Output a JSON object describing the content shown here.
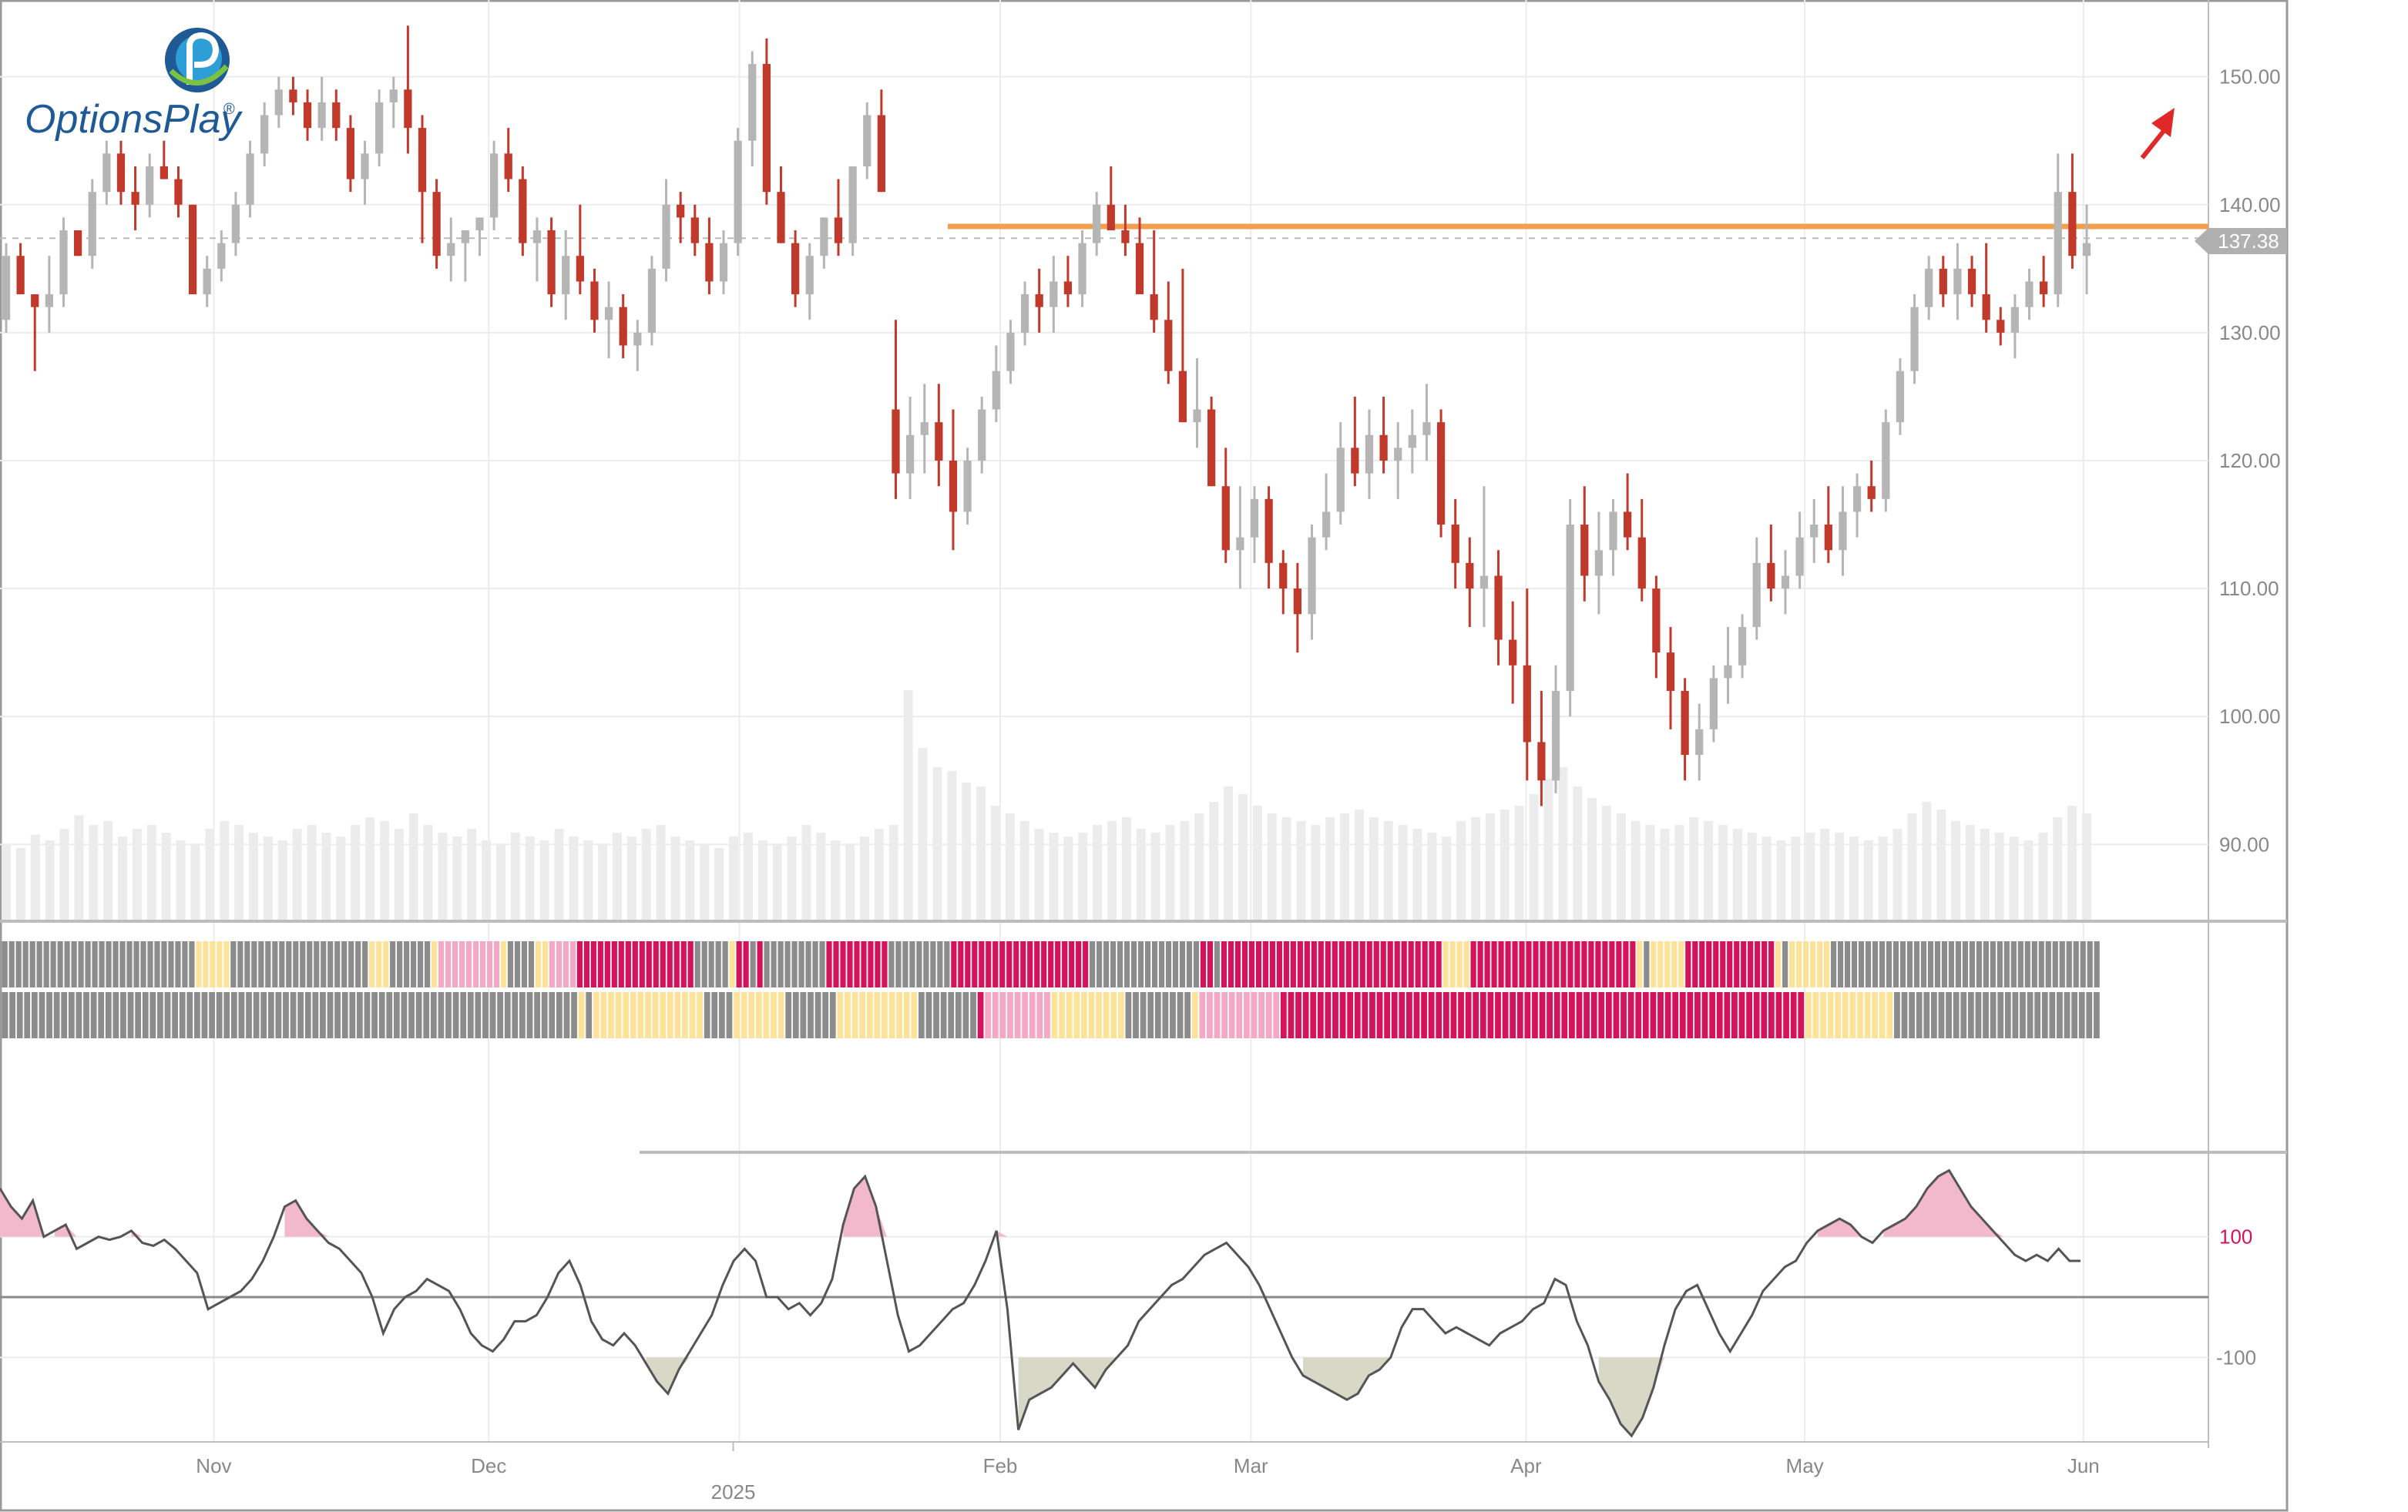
{
  "branding": {
    "logo_text": "OptionsPlay",
    "logo_mark": "®"
  },
  "colors": {
    "up_candle": "#b5b5b5",
    "down_candle": "#c0392b",
    "volume": "#ececec",
    "grid": "#ececec",
    "resistance": "#f0a050",
    "price_tag_bg": "#b0b0b0",
    "pink": "#f2b8cc",
    "olive": "#d8d8c6",
    "state_gray": "#8c8c8c",
    "state_yellow": "#fde39a",
    "state_pink": "#f3a8c4",
    "state_magenta": "#d4145a",
    "arrow": "#e02828"
  },
  "chart_data": {
    "type": "candlestick",
    "price_axis": {
      "ticks": [
        "150.00",
        "140.00",
        "130.00",
        "120.00",
        "110.00",
        "100.00",
        "90.00"
      ],
      "ylim": [
        84,
        156
      ]
    },
    "last_price": "137.38",
    "resistance_level": 138.3,
    "time_axis": {
      "labels": [
        "Nov",
        "Dec",
        "2025",
        "Feb",
        "Mar",
        "Apr",
        "May",
        "Jun"
      ]
    },
    "candles": [
      [
        131,
        137,
        130,
        136
      ],
      [
        136,
        137,
        133,
        133
      ],
      [
        133,
        133,
        127,
        132
      ],
      [
        132,
        136,
        130,
        133
      ],
      [
        133,
        139,
        132,
        138
      ],
      [
        138,
        138,
        136,
        136
      ],
      [
        136,
        142,
        135,
        141
      ],
      [
        141,
        145,
        140,
        144
      ],
      [
        144,
        145,
        140,
        141
      ],
      [
        141,
        143,
        138,
        140
      ],
      [
        140,
        144,
        139,
        143
      ],
      [
        143,
        145,
        142,
        142
      ],
      [
        142,
        143,
        139,
        140
      ],
      [
        140,
        140,
        133,
        133
      ],
      [
        133,
        136,
        132,
        135
      ],
      [
        135,
        138,
        134,
        137
      ],
      [
        137,
        141,
        136,
        140
      ],
      [
        140,
        145,
        139,
        144
      ],
      [
        144,
        148,
        143,
        147
      ],
      [
        147,
        150,
        146,
        149
      ],
      [
        149,
        150,
        147,
        148
      ],
      [
        148,
        149,
        145,
        146
      ],
      [
        146,
        150,
        145,
        148
      ],
      [
        148,
        149,
        145,
        146
      ],
      [
        146,
        147,
        141,
        142
      ],
      [
        142,
        145,
        140,
        144
      ],
      [
        144,
        149,
        143,
        148
      ],
      [
        148,
        150,
        146,
        149
      ],
      [
        149,
        154,
        144,
        146
      ],
      [
        146,
        147,
        137,
        141
      ],
      [
        141,
        142,
        135,
        136
      ],
      [
        136,
        139,
        134,
        137
      ],
      [
        137,
        138,
        134,
        138
      ],
      [
        138,
        139,
        136,
        139
      ],
      [
        139,
        145,
        138,
        144
      ],
      [
        144,
        146,
        141,
        142
      ],
      [
        142,
        143,
        136,
        137
      ],
      [
        137,
        139,
        134,
        138
      ],
      [
        138,
        139,
        132,
        133
      ],
      [
        133,
        138,
        131,
        136
      ],
      [
        136,
        140,
        133,
        134
      ],
      [
        134,
        135,
        130,
        131
      ],
      [
        131,
        134,
        128,
        132
      ],
      [
        132,
        133,
        128,
        129
      ],
      [
        129,
        131,
        127,
        130
      ],
      [
        130,
        136,
        129,
        135
      ],
      [
        135,
        142,
        134,
        140
      ],
      [
        140,
        141,
        137,
        139
      ],
      [
        139,
        140,
        136,
        137
      ],
      [
        137,
        139,
        133,
        134
      ],
      [
        134,
        138,
        133,
        137
      ],
      [
        137,
        146,
        136,
        145
      ],
      [
        145,
        152,
        143,
        151
      ],
      [
        151,
        153,
        140,
        141
      ],
      [
        141,
        143,
        137,
        137
      ],
      [
        137,
        138,
        132,
        133
      ],
      [
        133,
        137,
        131,
        136
      ],
      [
        136,
        139,
        135,
        139
      ],
      [
        139,
        142,
        136,
        137
      ],
      [
        137,
        143,
        136,
        143
      ],
      [
        143,
        148,
        142,
        147
      ],
      [
        147,
        149,
        141,
        141
      ],
      [
        124,
        131,
        117,
        119
      ],
      [
        119,
        125,
        117,
        122
      ],
      [
        122,
        126,
        119,
        123
      ],
      [
        123,
        126,
        118,
        120
      ],
      [
        120,
        124,
        113,
        116
      ],
      [
        116,
        121,
        115,
        120
      ],
      [
        120,
        125,
        119,
        124
      ],
      [
        124,
        129,
        123,
        127
      ],
      [
        127,
        131,
        126,
        130
      ],
      [
        130,
        134,
        129,
        133
      ],
      [
        133,
        135,
        130,
        132
      ],
      [
        132,
        136,
        130,
        134
      ],
      [
        134,
        136,
        132,
        133
      ],
      [
        133,
        138,
        132,
        137
      ],
      [
        137,
        141,
        136,
        140
      ],
      [
        140,
        143,
        138,
        138
      ],
      [
        138,
        140,
        136,
        137
      ],
      [
        137,
        139,
        133,
        133
      ],
      [
        133,
        138,
        130,
        131
      ],
      [
        131,
        134,
        126,
        127
      ],
      [
        127,
        135,
        123,
        123
      ],
      [
        123,
        128,
        121,
        124
      ],
      [
        124,
        125,
        118,
        118
      ],
      [
        118,
        121,
        112,
        113
      ],
      [
        113,
        118,
        110,
        114
      ],
      [
        114,
        118,
        112,
        117
      ],
      [
        117,
        118,
        110,
        112
      ],
      [
        112,
        113,
        108,
        110
      ],
      [
        110,
        112,
        105,
        108
      ],
      [
        108,
        115,
        106,
        114
      ],
      [
        114,
        119,
        113,
        116
      ],
      [
        116,
        123,
        115,
        121
      ],
      [
        121,
        125,
        118,
        119
      ],
      [
        119,
        124,
        117,
        122
      ],
      [
        122,
        125,
        119,
        120
      ],
      [
        120,
        123,
        117,
        121
      ],
      [
        121,
        124,
        119,
        122
      ],
      [
        122,
        126,
        120,
        123
      ],
      [
        123,
        124,
        114,
        115
      ],
      [
        115,
        117,
        110,
        112
      ],
      [
        112,
        114,
        107,
        110
      ],
      [
        110,
        118,
        107,
        111
      ],
      [
        111,
        113,
        104,
        106
      ],
      [
        106,
        109,
        101,
        104
      ],
      [
        104,
        110,
        95,
        98
      ],
      [
        98,
        102,
        93,
        95
      ],
      [
        95,
        104,
        94,
        102
      ],
      [
        102,
        117,
        100,
        115
      ],
      [
        115,
        118,
        109,
        111
      ],
      [
        111,
        116,
        108,
        113
      ],
      [
        113,
        117,
        111,
        116
      ],
      [
        116,
        119,
        113,
        114
      ],
      [
        114,
        117,
        109,
        110
      ],
      [
        110,
        111,
        103,
        105
      ],
      [
        105,
        107,
        99,
        102
      ],
      [
        102,
        103,
        95,
        97
      ],
      [
        97,
        101,
        95,
        99
      ],
      [
        99,
        104,
        98,
        103
      ],
      [
        103,
        107,
        101,
        104
      ],
      [
        104,
        108,
        103,
        107
      ],
      [
        107,
        114,
        106,
        112
      ],
      [
        112,
        115,
        109,
        110
      ],
      [
        110,
        113,
        108,
        111
      ],
      [
        111,
        116,
        110,
        114
      ],
      [
        114,
        117,
        112,
        115
      ],
      [
        115,
        118,
        112,
        113
      ],
      [
        113,
        118,
        111,
        116
      ],
      [
        116,
        119,
        114,
        118
      ],
      [
        118,
        120,
        116,
        117
      ],
      [
        117,
        124,
        116,
        123
      ],
      [
        123,
        128,
        122,
        127
      ],
      [
        127,
        133,
        126,
        132
      ],
      [
        132,
        136,
        131,
        135
      ],
      [
        135,
        136,
        132,
        133
      ],
      [
        133,
        137,
        131,
        135
      ],
      [
        135,
        136,
        132,
        133
      ],
      [
        133,
        137,
        130,
        131
      ],
      [
        131,
        132,
        129,
        130
      ],
      [
        130,
        133,
        128,
        132
      ],
      [
        132,
        135,
        131,
        134
      ],
      [
        134,
        136,
        132,
        133
      ],
      [
        133,
        144,
        132,
        141
      ],
      [
        141,
        144,
        135,
        136
      ],
      [
        136,
        140,
        133,
        137
      ]
    ],
    "volume": [
      40,
      38,
      45,
      42,
      48,
      55,
      50,
      52,
      44,
      48,
      50,
      46,
      42,
      40,
      48,
      52,
      50,
      46,
      44,
      42,
      48,
      50,
      46,
      44,
      50,
      54,
      52,
      48,
      56,
      50,
      46,
      44,
      48,
      42,
      40,
      46,
      44,
      42,
      48,
      44,
      42,
      40,
      46,
      44,
      48,
      50,
      44,
      42,
      40,
      38,
      44,
      46,
      42,
      40,
      44,
      50,
      46,
      42,
      40,
      44,
      48,
      50,
      120,
      90,
      80,
      78,
      72,
      70,
      60,
      56,
      52,
      48,
      46,
      44,
      46,
      50,
      52,
      54,
      48,
      46,
      50,
      52,
      56,
      62,
      70,
      66,
      60,
      56,
      54,
      52,
      50,
      54,
      56,
      58,
      54,
      52,
      50,
      48,
      46,
      44,
      52,
      54,
      56,
      58,
      60,
      66,
      74,
      80,
      70,
      64,
      60,
      56,
      52,
      50,
      48,
      50,
      54,
      52,
      50,
      48,
      46,
      44,
      42,
      44,
      46,
      48,
      46,
      44,
      42,
      44,
      48,
      56,
      62,
      58,
      52,
      50,
      48,
      46,
      44,
      42,
      46,
      54,
      60,
      56
    ],
    "state_row1": "GGGGGGGGGGGGGGGGGGGGGGGGGGGGYYYYYGGGGGGGGGGGGGGGGGGGGYYYGGGGGGYPPPPPPPPPYGGGGYYPPPPMMMMMMMMMMMMMMMMMGGGGGYMMGMGGGGGGGGGMMMMMMMMMGGGGGGGGGMMMMMMMMMMMMMMMMMMMMGGGGGGGGGGGGGGGGMMGMMMMMMMMMMMMMMMMMMMMMMMMMMMMMMMMYYYYMMMMMMMMMMMMMMMMMMMMMMMMYGYYYYYMMMMMMMMMMMMMYGYYYYYYGGGGGGGGGGGGGGGGGGGGGGGGGGGGGGGGGGGGGGG",
    "state_row2": "GGGGGGGGGGGGGGGGGGGGGGGGGGGGGGGGGGGGGGGGGGGGGGGGGGGGGGGGGGGGGGGGGGGGGGGGGGGGGGYGYYYYYYYYYYYYYYYGGGGYYYYYYYGGGGGGGYYYYYYYYYYYGGGGGGGGMPPPPPPPPPYYYYYYYYYYGGGGGGGGGYPPPPPPPPPPPMMMMMMMMMMMMMMMMMMMMMMMMMMMMMMMMMMMMMMMMMMMMMMMMMMMMMMMMMMMMMMMMMMMMMMMYYYYYYYYYYYYGGGGGGGGGGGGGGGGGGGGGGGGGGGG",
    "oscillator": {
      "ticks": [
        "100",
        "-100"
      ],
      "ylim": [
        -240,
        240
      ],
      "values": [
        180,
        150,
        130,
        160,
        100,
        110,
        120,
        80,
        90,
        100,
        95,
        100,
        110,
        90,
        85,
        95,
        80,
        60,
        40,
        -20,
        -10,
        0,
        10,
        30,
        60,
        100,
        150,
        160,
        130,
        110,
        90,
        80,
        60,
        40,
        0,
        -60,
        -20,
        0,
        10,
        30,
        20,
        10,
        -20,
        -60,
        -80,
        -90,
        -70,
        -40,
        -40,
        -30,
        0,
        40,
        60,
        20,
        -40,
        -70,
        -80,
        -60,
        -80,
        -110,
        -140,
        -160,
        -120,
        -90,
        -60,
        -30,
        20,
        60,
        80,
        60,
        0,
        0,
        -20,
        -10,
        -30,
        -10,
        30,
        120,
        180,
        200,
        150,
        60,
        -30,
        -90,
        -80,
        -60,
        -40,
        -20,
        -10,
        20,
        60,
        110,
        -20,
        -220,
        -170,
        -160,
        -150,
        -130,
        -110,
        -130,
        -150,
        -120,
        -100,
        -80,
        -40,
        -20,
        0,
        20,
        30,
        50,
        70,
        80,
        90,
        70,
        50,
        20,
        -20,
        -60,
        -100,
        -130,
        -140,
        -150,
        -160,
        -170,
        -160,
        -130,
        -120,
        -100,
        -50,
        -20,
        -20,
        -40,
        -60,
        -50,
        -60,
        -70,
        -80,
        -60,
        -50,
        -40,
        -20,
        -10,
        30,
        20,
        -40,
        -80,
        -140,
        -170,
        -210,
        -230,
        -200,
        -150,
        -80,
        -20,
        10,
        20,
        -20,
        -60,
        -90,
        -60,
        -30,
        10,
        30,
        50,
        60,
        90,
        110,
        120,
        130,
        120,
        100,
        90,
        110,
        120,
        130,
        150,
        180,
        200,
        210,
        180,
        150,
        130,
        110,
        90,
        70,
        60,
        70,
        60,
        80,
        60,
        60
      ]
    }
  }
}
